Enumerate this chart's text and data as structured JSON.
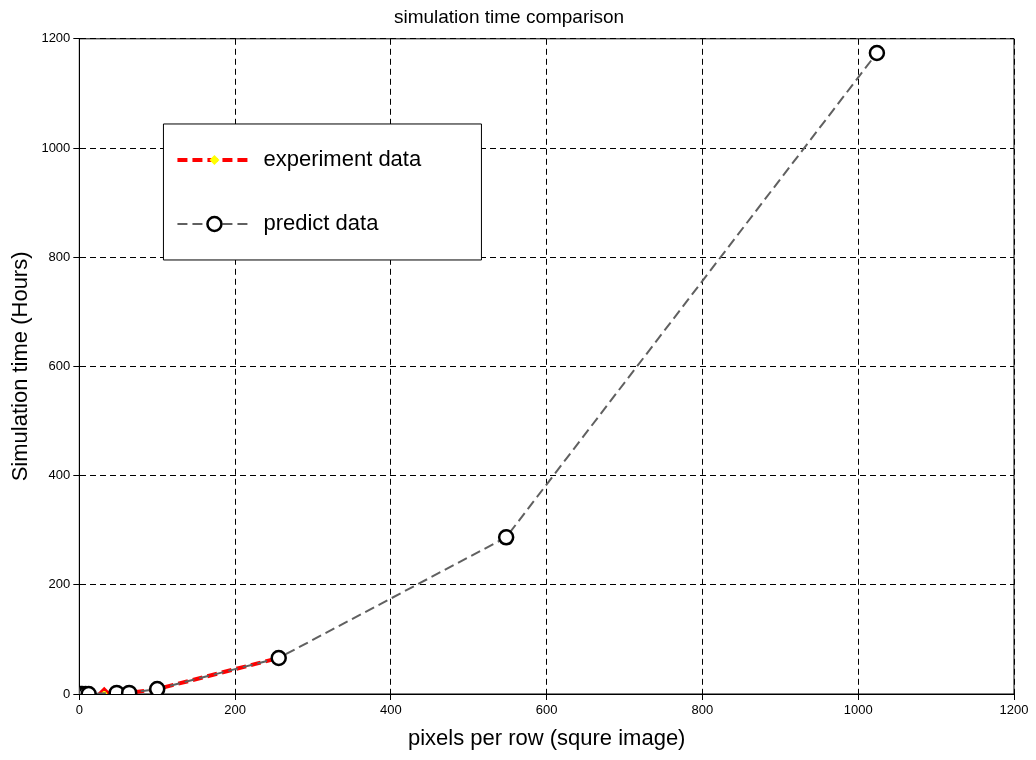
{
  "chart_data": {
    "type": "line",
    "title": "simulation time comparison",
    "xlabel": "pixels per row (squre image)",
    "ylabel": "Simulation time (Hours)",
    "xlim": [
      0,
      1200
    ],
    "xticks": [
      0,
      200,
      400,
      600,
      800,
      1000,
      1200
    ],
    "ylim": [
      0,
      1200
    ],
    "yticks": [
      0,
      200,
      400,
      600,
      800,
      1000,
      1200
    ],
    "grid": true,
    "legend": "top left",
    "series": [
      {
        "name": "experiment data",
        "color": "#ff0000",
        "marker": "diamond",
        "line_style": "dashed",
        "x": [
          32,
          48,
          64,
          100,
          256
        ],
        "values": [
          1,
          2,
          2,
          9,
          66
        ]
      },
      {
        "name": "predict data",
        "color": "#606060",
        "marker": "circle",
        "line_style": "dashed",
        "x": [
          2,
          4,
          8,
          12,
          48,
          64,
          100,
          256,
          548,
          1024
        ],
        "values": [
          0,
          0,
          0,
          0,
          2,
          2,
          9,
          66,
          287,
          1174
        ]
      }
    ]
  }
}
